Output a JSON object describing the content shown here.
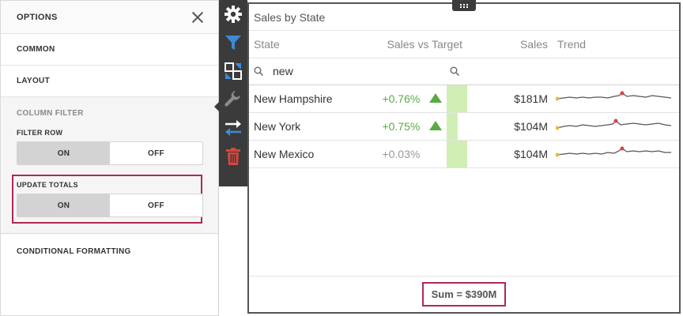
{
  "options": {
    "title": "OPTIONS",
    "sections": {
      "common": "COMMON",
      "layout": "LAYOUT",
      "column_filter": "COLUMN FILTER",
      "conditional_formatting": "CONDITIONAL FORMATTING"
    },
    "filter_row": {
      "label": "FILTER ROW",
      "on": "ON",
      "off": "OFF",
      "selected": "ON"
    },
    "update_totals": {
      "label": "UPDATE TOTALS",
      "on": "ON",
      "off": "OFF",
      "selected": "ON"
    }
  },
  "toolbar": {
    "icons": [
      "gear-icon",
      "filter-icon",
      "layout-transform-icon",
      "wrench-icon",
      "swap-arrows-icon",
      "trash-icon"
    ],
    "colors": {
      "background": "#3b3b3b",
      "filter": "#3c8ad6",
      "delete": "#d9463c"
    }
  },
  "grid": {
    "title": "Sales by State",
    "columns": [
      "State",
      "Sales vs Target",
      "Sales",
      "Trend"
    ],
    "filter": {
      "state": "new",
      "sales_vs_target": ""
    },
    "rows": [
      {
        "state": "New Hampshire",
        "delta": "+0.76%",
        "indicator": "up",
        "bar": 1.0,
        "sales": "$181M"
      },
      {
        "state": "New York",
        "delta": "+0.75%",
        "indicator": "up",
        "bar": 0.55,
        "sales": "$104M"
      },
      {
        "state": "New Mexico",
        "delta": "+0.03%",
        "indicator": "none",
        "bar": 1.0,
        "sales": "$104M"
      }
    ],
    "total": "Sum = $390M",
    "colors": {
      "positive": "#59a947",
      "bar": "#d1efb5",
      "highlight": "#b0294f",
      "spark_start": "#e8b84a",
      "spark_max": "#e0413d"
    }
  }
}
